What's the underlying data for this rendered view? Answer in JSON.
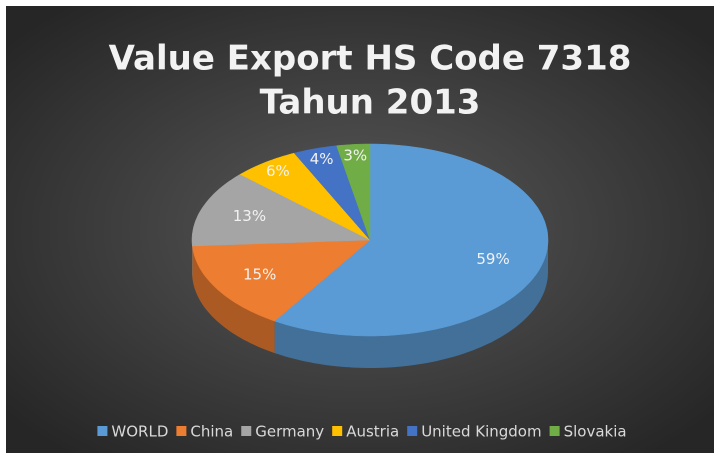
{
  "chart_data": {
    "type": "pie3d",
    "title": [
      "Value Export HS Code 7318",
      "Tahun 2013"
    ],
    "categories": [
      "WORLD",
      "China",
      "Germany",
      "Austria",
      "United Kingdom",
      "Slovakia"
    ],
    "values": [
      59,
      15,
      13,
      6,
      4,
      3
    ],
    "value_labels": [
      "59%",
      "15%",
      "13%",
      "6%",
      "4%",
      "3%"
    ],
    "colors": [
      "#5b9bd5",
      "#ed7d31",
      "#a5a5a5",
      "#ffc000",
      "#4472c4",
      "#70ad47"
    ],
    "legend": "bottom"
  }
}
